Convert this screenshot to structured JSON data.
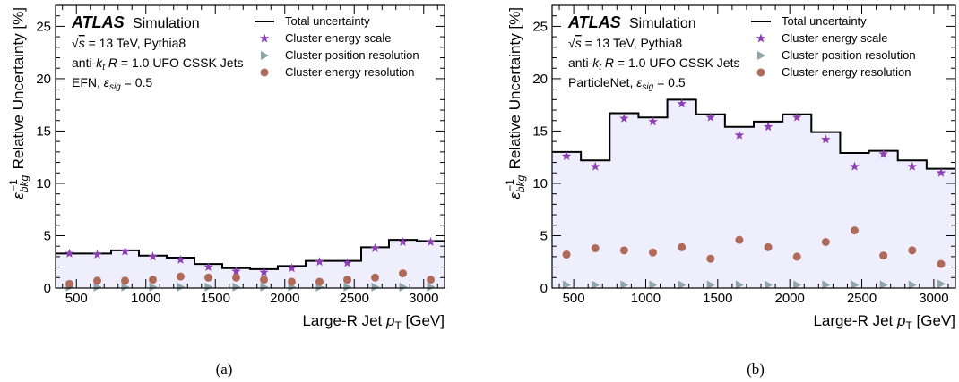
{
  "chart_data": [
    {
      "id": "a",
      "type": "bar",
      "panel_label": "(a)",
      "experiment": "ATLAS",
      "label_suffix": "Simulation",
      "info_lines": [
        "√s = 13 TeV, Pythia8",
        "anti-kt R = 1.0 UFO CSSK Jets",
        "EFN, εsig = 0.5"
      ],
      "xlabel": "Large-R Jet pT [GeV]",
      "ylabel": "ε_bkg^-1 Relative Uncertainty [%]",
      "xlim": [
        350,
        3150
      ],
      "ylim": [
        0,
        27
      ],
      "x_ticks": [
        500,
        1000,
        1500,
        2000,
        2500,
        3000
      ],
      "x_tick_labels": [
        "500",
        "1000",
        "1500",
        "2000",
        "2500",
        "3000"
      ],
      "y_ticks": [
        0,
        5,
        10,
        15,
        20,
        25
      ],
      "y_tick_labels": [
        "0",
        "5",
        "10",
        "15",
        "20",
        "25"
      ],
      "bin_edges": [
        350,
        550,
        750,
        950,
        1150,
        1350,
        1550,
        1750,
        1950,
        2150,
        2350,
        2550,
        2750,
        2950,
        3150
      ],
      "bin_centers": [
        450,
        650,
        850,
        1050,
        1250,
        1450,
        1650,
        1850,
        2050,
        2250,
        2450,
        2650,
        2850,
        3050
      ],
      "series": [
        {
          "name": "Total uncertainty",
          "style": "step",
          "values": [
            3.3,
            3.3,
            3.6,
            3.1,
            2.9,
            2.3,
            1.9,
            1.8,
            2.1,
            2.6,
            2.6,
            3.9,
            4.6,
            4.5
          ]
        },
        {
          "name": "Cluster energy scale",
          "style": "star",
          "values": [
            3.3,
            3.2,
            3.5,
            3.0,
            2.7,
            2.0,
            1.6,
            1.5,
            1.9,
            2.5,
            2.4,
            3.8,
            4.4,
            4.4
          ]
        },
        {
          "name": "Cluster position resolution",
          "style": "triangle",
          "values": [
            0.1,
            0.1,
            0.1,
            0.1,
            0.1,
            0.1,
            0.1,
            0.1,
            0.1,
            0.1,
            0.1,
            0.1,
            0.1,
            0.1
          ]
        },
        {
          "name": "Cluster energy resolution",
          "style": "circle",
          "values": [
            0.4,
            0.7,
            0.7,
            0.8,
            1.1,
            1.0,
            1.0,
            0.8,
            0.6,
            0.6,
            0.8,
            1.0,
            1.4,
            0.8
          ]
        }
      ]
    },
    {
      "id": "b",
      "type": "bar",
      "panel_label": "(b)",
      "experiment": "ATLAS",
      "label_suffix": "Simulation",
      "info_lines": [
        "√s = 13 TeV, Pythia8",
        "anti-kt R = 1.0 UFO CSSK Jets",
        "ParticleNet, εsig = 0.5"
      ],
      "xlabel": "Large-R Jet pT [GeV]",
      "ylabel": "ε_bkg^-1 Relative Uncertainty [%]",
      "xlim": [
        350,
        3150
      ],
      "ylim": [
        0,
        27
      ],
      "x_ticks": [
        500,
        1000,
        1500,
        2000,
        2500,
        3000
      ],
      "x_tick_labels": [
        "500",
        "1000",
        "1500",
        "2000",
        "2500",
        "3000"
      ],
      "y_ticks": [
        0,
        5,
        10,
        15,
        20,
        25
      ],
      "y_tick_labels": [
        "0",
        "5",
        "10",
        "15",
        "20",
        "25"
      ],
      "bin_edges": [
        350,
        550,
        750,
        950,
        1150,
        1350,
        1550,
        1750,
        1950,
        2150,
        2350,
        2550,
        2750,
        2950,
        3150
      ],
      "bin_centers": [
        450,
        650,
        850,
        1050,
        1250,
        1450,
        1650,
        1850,
        2050,
        2250,
        2450,
        2650,
        2850,
        3050
      ],
      "series": [
        {
          "name": "Total uncertainty",
          "style": "step",
          "values": [
            13.0,
            12.2,
            16.7,
            16.3,
            18.0,
            16.6,
            15.4,
            15.9,
            16.6,
            14.9,
            12.9,
            13.1,
            12.2,
            11.4
          ]
        },
        {
          "name": "Cluster energy scale",
          "style": "star",
          "values": [
            12.6,
            11.6,
            16.2,
            15.9,
            17.6,
            16.3,
            14.6,
            15.4,
            16.3,
            14.2,
            11.6,
            12.8,
            11.6,
            11.0
          ]
        },
        {
          "name": "Cluster position resolution",
          "style": "triangle",
          "values": [
            0.3,
            0.3,
            0.3,
            0.3,
            0.3,
            0.3,
            0.3,
            0.3,
            0.3,
            0.3,
            0.3,
            0.3,
            0.3,
            0.4
          ]
        },
        {
          "name": "Cluster energy resolution",
          "style": "circle",
          "values": [
            3.2,
            3.8,
            3.6,
            3.4,
            3.9,
            2.8,
            4.6,
            3.9,
            3.0,
            4.4,
            5.5,
            3.1,
            3.6,
            2.3
          ]
        }
      ]
    }
  ],
  "colors": {
    "total": "#000000",
    "band_fill": "#eeeefc",
    "star": "#8e3fb5",
    "triangle": "#8fa5aa",
    "circle": "#b06a5a"
  }
}
